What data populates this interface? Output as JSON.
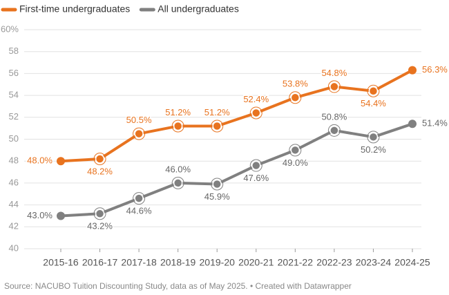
{
  "chart_data": {
    "type": "line",
    "categories": [
      "2015-16",
      "2016-17",
      "2017-18",
      "2018-19",
      "2019-20",
      "2020-21",
      "2021-22",
      "2022-23",
      "2023-24",
      "2024-25"
    ],
    "series": [
      {
        "name": "First-time undergraduates",
        "color": "#e8731f",
        "values": [
          48.0,
          48.2,
          50.5,
          51.2,
          51.2,
          52.4,
          53.8,
          54.8,
          54.4,
          56.3
        ],
        "value_labels": [
          "48.0%",
          "48.2%",
          "50.5%",
          "51.2%",
          "51.2%",
          "52.4%",
          "53.8%",
          "54.8%",
          "54.4%",
          "56.3%"
        ]
      },
      {
        "name": "All undergraduates",
        "color": "#808080",
        "values": [
          43.0,
          43.2,
          44.6,
          46.0,
          45.9,
          47.6,
          49.0,
          50.8,
          50.2,
          51.4
        ],
        "value_labels": [
          "43.0%",
          "43.2%",
          "44.6%",
          "46.0%",
          "45.9%",
          "47.6%",
          "49.0%",
          "50.8%",
          "50.2%",
          "51.4%"
        ]
      }
    ],
    "ylim": [
      40,
      60
    ],
    "yticks": [
      40,
      42,
      44,
      46,
      48,
      50,
      52,
      54,
      56,
      58,
      {
        "value": 60,
        "label": "60%"
      }
    ],
    "grid": true,
    "source": "Source: NACUBO Tuition Discounting Study, data as of May 2025. • Created with Datawrapper"
  }
}
